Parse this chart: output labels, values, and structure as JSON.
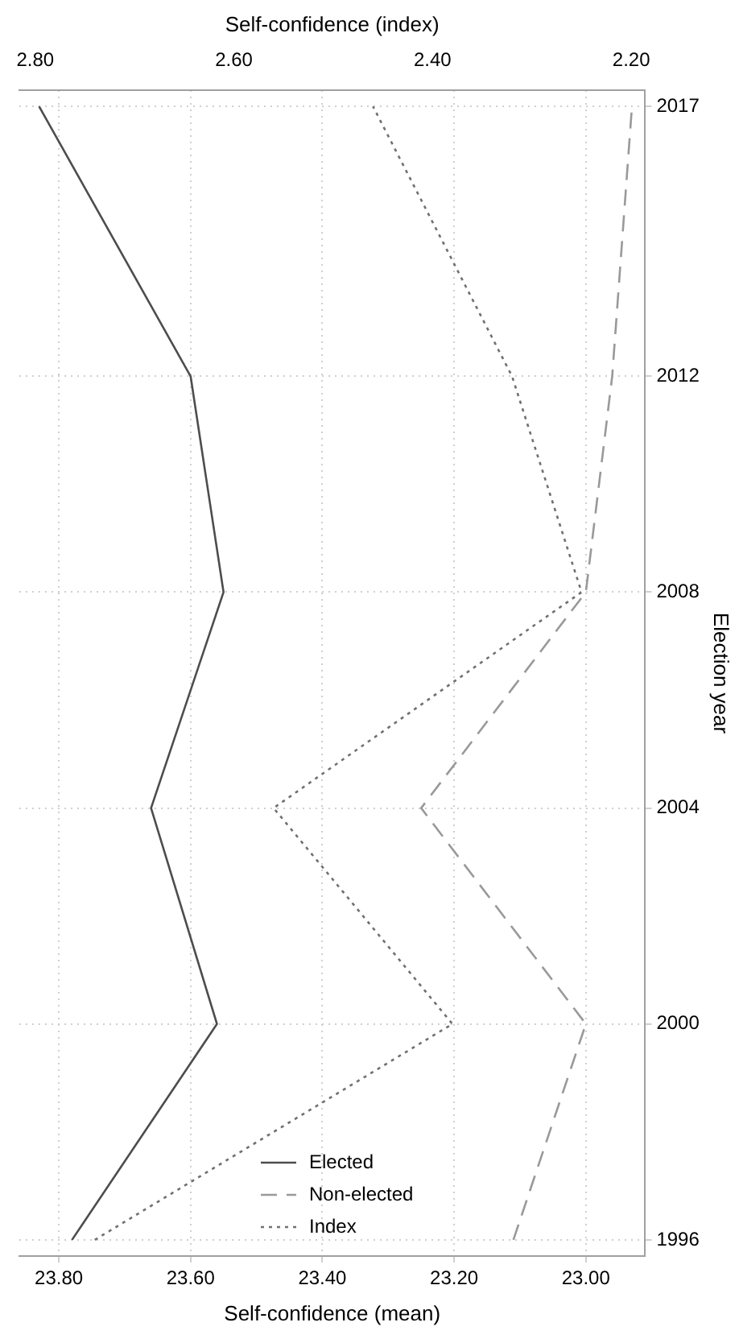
{
  "chart_data": {
    "type": "line",
    "xlabel": "Self-confidence (mean)",
    "ylabel": "Election year",
    "x2label": "Self-confidence (index)",
    "series": [
      {
        "name": "Elected",
        "color": "#4d4d4d",
        "line_style": "solid",
        "x": [
          23.78,
          23.56,
          23.66,
          23.55,
          23.6,
          23.83
        ],
        "values": [
          1996,
          2000,
          2004,
          2008,
          2012,
          2017
        ]
      },
      {
        "name": "Non-elected",
        "color": "#999999",
        "line_style": "dashed",
        "x": [
          23.11,
          23.0,
          23.25,
          23.0,
          22.96,
          22.93
        ],
        "values": [
          1996,
          2000,
          2004,
          2008,
          2012,
          2017
        ]
      },
      {
        "name": "Index",
        "color": "#707070",
        "line_style": "dotted",
        "axis": "x2",
        "x": [
          2.74,
          2.38,
          2.56,
          2.25,
          2.32,
          2.46
        ],
        "values": [
          1996,
          2000,
          2004,
          2008,
          2012,
          2017
        ]
      }
    ],
    "ylim": [
      1995.7,
      2017.3
    ],
    "yticks": [
      1996,
      2000,
      2004,
      2008,
      2012,
      2017
    ],
    "xlim": [
      23.86,
      22.91
    ],
    "xticks": [
      {
        "value": 23.8,
        "label": "23.80"
      },
      {
        "value": 23.6,
        "label": "23.60"
      },
      {
        "value": 23.4,
        "label": "23.40"
      },
      {
        "value": 23.2,
        "label": "23.20"
      },
      {
        "value": 23.0,
        "label": "23.00"
      }
    ],
    "x2lim": [
      2.816,
      2.186
    ],
    "x2ticks": [
      {
        "value": 2.8,
        "label": "2.80"
      },
      {
        "value": 2.6,
        "label": "2.60"
      },
      {
        "value": 2.4,
        "label": "2.40"
      },
      {
        "value": 2.2,
        "label": "2.20"
      }
    ],
    "grid": true,
    "legend": "bottom left",
    "marker": "none"
  }
}
